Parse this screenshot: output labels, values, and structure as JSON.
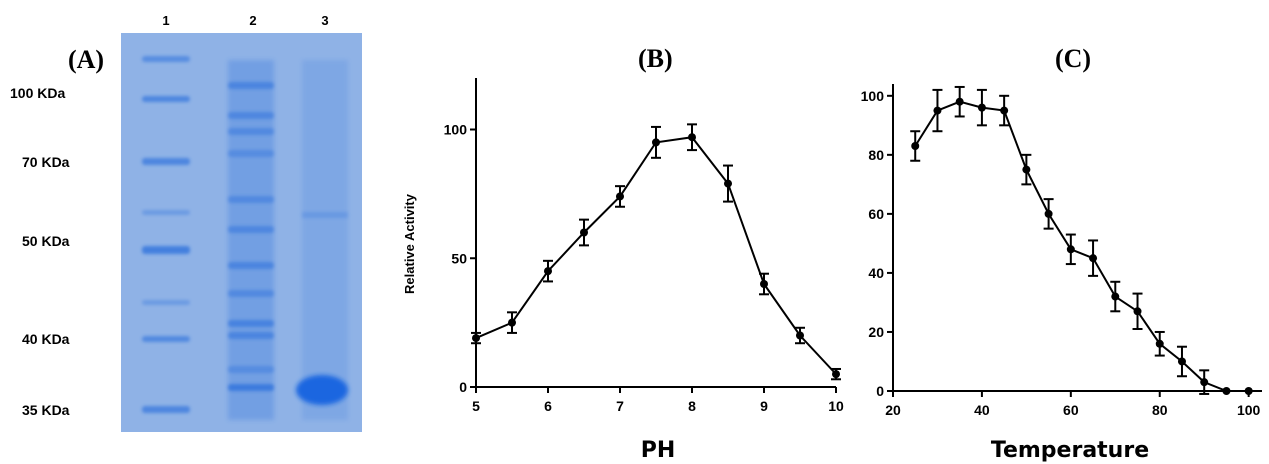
{
  "panels": {
    "a_label": "(A)",
    "b_label": "(B)",
    "c_label": "(C)"
  },
  "gel": {
    "lanes": [
      "1",
      "2",
      "3"
    ],
    "markers": [
      "100 KDa",
      "70 KDa",
      "50 KDa",
      "40 KDa",
      "35 KDa"
    ],
    "background_color": "#8fb2e6",
    "band_color": "#2b6fdc"
  },
  "chart_data": [
    {
      "panel": "(B)",
      "type": "line",
      "xlabel": "PH",
      "ylabel": "Relative Activity",
      "xlim": [
        5,
        10
      ],
      "ylim": [
        0,
        120
      ],
      "xticks": [
        5,
        6,
        7,
        8,
        9,
        10
      ],
      "yticks": [
        0,
        50,
        100
      ],
      "grid": false,
      "series": [
        {
          "x": [
            5,
            5.5,
            6,
            6.5,
            7,
            7.5,
            8,
            8.5,
            9,
            9.5,
            10
          ],
          "y": [
            19,
            25,
            45,
            60,
            74,
            95,
            97,
            79,
            40,
            20,
            5
          ],
          "error": [
            2,
            4,
            4,
            5,
            4,
            6,
            5,
            7,
            4,
            3,
            2
          ]
        }
      ]
    },
    {
      "panel": "(C)",
      "type": "line",
      "xlabel": "Temperature",
      "ylabel": "",
      "xlim": [
        20,
        103
      ],
      "ylim": [
        0,
        104
      ],
      "xticks": [
        20,
        40,
        60,
        80,
        100
      ],
      "yticks": [
        0,
        20,
        40,
        60,
        80,
        100
      ],
      "grid": false,
      "series": [
        {
          "x": [
            25,
            30,
            35,
            40,
            45,
            50,
            55,
            60,
            65,
            70,
            75,
            80,
            85,
            90,
            95,
            100
          ],
          "y": [
            83,
            95,
            98,
            96,
            95,
            75,
            60,
            48,
            45,
            32,
            27,
            16,
            10,
            3,
            0,
            0
          ],
          "error": [
            5,
            7,
            5,
            6,
            5,
            5,
            5,
            5,
            6,
            5,
            6,
            4,
            5,
            4,
            0,
            0
          ]
        }
      ]
    }
  ]
}
